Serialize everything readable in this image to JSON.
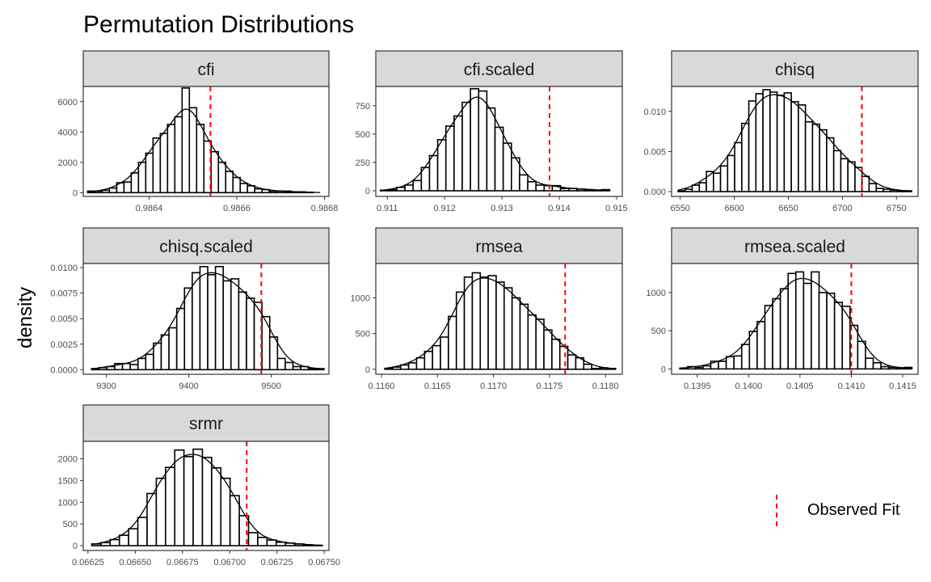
{
  "page": {
    "title": "Permutation Distributions",
    "ylabel": "density",
    "legend": {
      "label": "Observed Fit",
      "line_color": "#ff0000",
      "placement": "bottom-right"
    }
  },
  "colors": {
    "strip_fill": "#d9d9d9",
    "bar_fill": "#ffffff",
    "bar_stroke": "#000000",
    "observed_line": "#ff0000"
  },
  "chart_data": [
    {
      "type": "bar",
      "title": "cfi",
      "xlim": [
        0.98625,
        0.98681
      ],
      "ylim": [
        -250,
        7000
      ],
      "xticks": [
        0.9864,
        0.9866,
        0.9868
      ],
      "xtick_labels": [
        "0.9864",
        "0.9866",
        "0.9868"
      ],
      "yticks": [
        0,
        2000,
        4000,
        6000
      ],
      "ytick_labels": [
        "0",
        "2000",
        "4000",
        "6000"
      ],
      "bins": {
        "x_start": 0.98626,
        "x_end": 0.98679,
        "values": [
          100,
          100,
          150,
          300,
          650,
          700,
          1300,
          2000,
          2600,
          3600,
          3900,
          4500,
          5000,
          6900,
          5600,
          4500,
          3400,
          2700,
          2000,
          1400,
          1000,
          600,
          450,
          250,
          200,
          100,
          100,
          100,
          50,
          50,
          25,
          0
        ]
      },
      "observed": 0.98654
    },
    {
      "type": "bar",
      "title": "cfi.scaled",
      "xlim": [
        0.9108,
        0.9151
      ],
      "ylim": [
        -50,
        920
      ],
      "xticks": [
        0.911,
        0.912,
        0.913,
        0.914,
        0.915
      ],
      "xtick_labels": [
        "0.911",
        "0.912",
        "0.913",
        "0.914",
        "0.915"
      ],
      "yticks": [
        0,
        250,
        500,
        750
      ],
      "ytick_labels": [
        "0",
        "250",
        "500",
        "750"
      ],
      "bins": {
        "x_start": 0.91088,
        "x_end": 0.91488,
        "values": [
          5,
          10,
          30,
          50,
          90,
          205,
          310,
          450,
          570,
          660,
          780,
          900,
          880,
          730,
          560,
          420,
          290,
          140,
          80,
          50,
          45,
          45,
          20,
          20,
          15,
          10,
          5,
          10
        ]
      },
      "observed": 0.91383
    },
    {
      "type": "bar",
      "title": "chisq",
      "xlim": [
        6542,
        6770
      ],
      "ylim": [
        -0.0006,
        0.0131
      ],
      "xticks": [
        6550,
        6600,
        6650,
        6700,
        6750
      ],
      "xtick_labels": [
        "6550",
        "6600",
        "6650",
        "6700",
        "6750"
      ],
      "yticks": [
        0,
        0.005,
        0.01
      ],
      "ytick_labels": [
        "0.000",
        "0.005",
        "0.010"
      ],
      "bins": {
        "x_start": 6548,
        "x_end": 6764,
        "values": [
          0.0001,
          0.0003,
          0.0008,
          0.0011,
          0.0025,
          0.0023,
          0.0032,
          0.0045,
          0.0061,
          0.0085,
          0.0113,
          0.0122,
          0.0127,
          0.0124,
          0.012,
          0.0123,
          0.0112,
          0.0108,
          0.0087,
          0.0084,
          0.0077,
          0.0067,
          0.0051,
          0.0041,
          0.0037,
          0.003,
          0.0019,
          0.001,
          0.0004,
          0.0003,
          0.0002,
          0.0001,
          0.0001
        ]
      },
      "observed": 6718
    },
    {
      "type": "bar",
      "title": "chisq.scaled",
      "xlim": [
        9272,
        9570
      ],
      "ylim": [
        -0.00045,
        0.0104
      ],
      "xticks": [
        9300,
        9400,
        9500
      ],
      "xtick_labels": [
        "9300",
        "9400",
        "9500"
      ],
      "yticks": [
        0,
        0.0025,
        0.005,
        0.0075,
        0.01
      ],
      "ytick_labels": [
        "0.0000",
        "0.0025",
        "0.0050",
        "0.0075",
        "0.0100"
      ],
      "bins": {
        "x_start": 9282,
        "x_end": 9564,
        "values": [
          0.0001,
          0.0002,
          0.0003,
          0.0006,
          0.0006,
          0.0005,
          0.0011,
          0.0015,
          0.0026,
          0.0034,
          0.0041,
          0.006,
          0.008,
          0.0095,
          0.0101,
          0.0093,
          0.0101,
          0.0087,
          0.0089,
          0.0076,
          0.007,
          0.0066,
          0.0052,
          0.0032,
          0.0011,
          0.0007,
          0.0003,
          0.0003,
          0.0001,
          0.0001
        ]
      },
      "observed": 9488
    },
    {
      "type": "bar",
      "title": "rmsea",
      "xlim": [
        0.11595,
        0.11815
      ],
      "ylim": [
        -70,
        1480
      ],
      "xticks": [
        0.116,
        0.1165,
        0.117,
        0.1175,
        0.118
      ],
      "xtick_labels": [
        "0.1160",
        "0.1165",
        "0.1170",
        "0.1175",
        "0.1180"
      ],
      "yticks": [
        0,
        500,
        1000
      ],
      "ytick_labels": [
        "0",
        "500",
        "1000"
      ],
      "bins": {
        "x_start": 0.11603,
        "x_end": 0.11809,
        "values": [
          10,
          30,
          60,
          90,
          160,
          250,
          330,
          450,
          740,
          1080,
          1290,
          1350,
          1290,
          1310,
          1220,
          1140,
          1000,
          910,
          760,
          700,
          550,
          420,
          320,
          200,
          160,
          70,
          10,
          20,
          10
        ]
      },
      "observed": 0.11764
    },
    {
      "type": "bar",
      "title": "rmsea.scaled",
      "xlim": [
        0.13925,
        0.14165
      ],
      "ylim": [
        -70,
        1380
      ],
      "xticks": [
        0.1395,
        0.14,
        0.1405,
        0.141,
        0.1415
      ],
      "xtick_labels": [
        "0.1395",
        "0.1400",
        "0.1405",
        "0.1410",
        "0.1415"
      ],
      "yticks": [
        0,
        500,
        1000
      ],
      "ytick_labels": [
        "0",
        "500",
        "1000"
      ],
      "bins": {
        "x_start": 0.13933,
        "x_end": 0.14159,
        "values": [
          10,
          30,
          20,
          40,
          100,
          100,
          160,
          170,
          320,
          490,
          620,
          830,
          920,
          1050,
          1250,
          1270,
          1120,
          1270,
          1000,
          990,
          870,
          820,
          570,
          360,
          140,
          80,
          30,
          20,
          10,
          20
        ]
      },
      "observed": 0.141
    },
    {
      "type": "bar",
      "title": "srmr",
      "xlim": [
        0.066225,
        0.067525
      ],
      "ylim": [
        -110,
        2400
      ],
      "xticks": [
        0.06625,
        0.0665,
        0.06675,
        0.067,
        0.06725,
        0.0675
      ],
      "xtick_labels": [
        "0.06625",
        "0.06650",
        "0.06675",
        "0.06700",
        "0.06725",
        "0.06750"
      ],
      "yticks": [
        0,
        500,
        1000,
        1500,
        2000
      ],
      "ytick_labels": [
        "0",
        "500",
        "1000",
        "1500",
        "2000"
      ],
      "bins": {
        "x_start": 0.06627,
        "x_end": 0.06749,
        "values": [
          40,
          70,
          140,
          240,
          390,
          650,
          1200,
          1550,
          1800,
          2200,
          2050,
          2220,
          2030,
          1790,
          1550,
          1150,
          690,
          300,
          190,
          130,
          80,
          60,
          40,
          20,
          10
        ]
      },
      "observed": 0.06709
    }
  ]
}
